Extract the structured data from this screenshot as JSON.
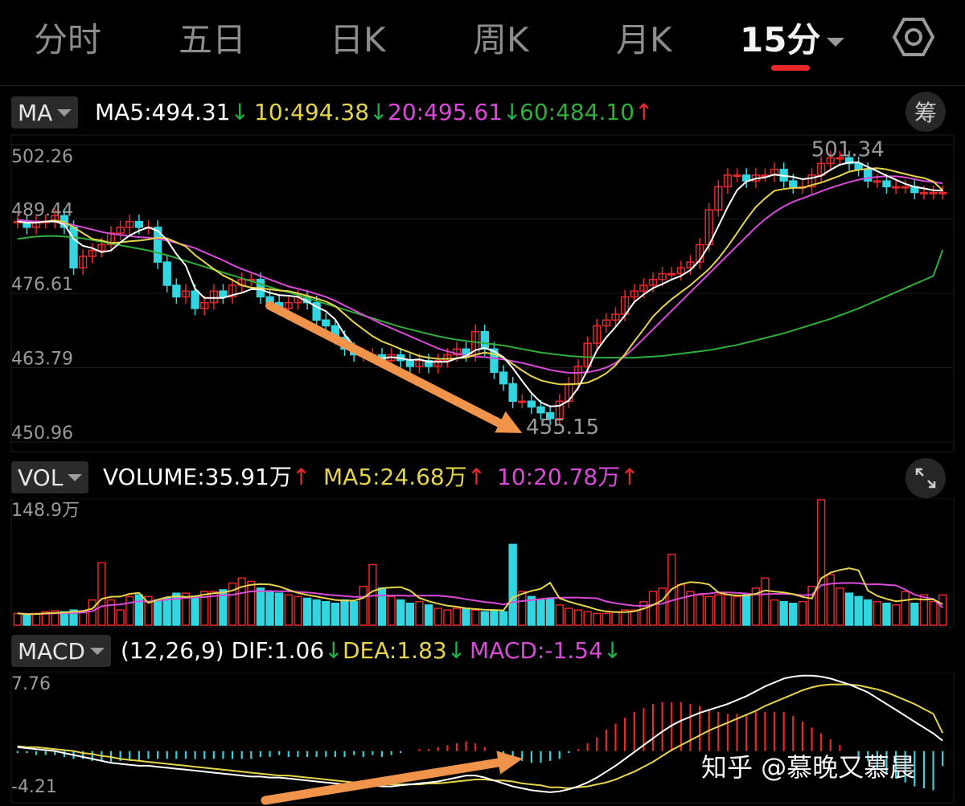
{
  "tabs": [
    {
      "label": "分时"
    },
    {
      "label": "五日"
    },
    {
      "label": "日K"
    },
    {
      "label": "周K"
    },
    {
      "label": "月K"
    },
    {
      "label": "15分"
    }
  ],
  "active_tab": "15分",
  "ma_legend": {
    "selector": "MA",
    "items": [
      {
        "text": "MA5:494.31",
        "arrow": "↓",
        "color": "#ffffff",
        "arrow_color": "#1fb34a"
      },
      {
        "text": "10:494.38",
        "arrow": "↓",
        "color": "#e6d44a",
        "arrow_color": "#1fb34a"
      },
      {
        "text": "20:495.61",
        "arrow": "↓",
        "color": "#d94ad8",
        "arrow_color": "#1fb34a"
      },
      {
        "text": "60:484.10",
        "arrow": "↑",
        "color": "#2fae3c",
        "arrow_color": "#e8282b"
      }
    ],
    "chip_button": "筹"
  },
  "vol_legend": {
    "selector": "VOL",
    "items": [
      {
        "text": "VOLUME:35.91万",
        "arrow": "↑",
        "color": "#ffffff",
        "arrow_color": "#e8282b"
      },
      {
        "text": "MA5:24.68万",
        "arrow": "↑",
        "color": "#e6d44a",
        "arrow_color": "#e8282b"
      },
      {
        "text": "10:20.78万",
        "arrow": "↑",
        "color": "#d94ad8",
        "arrow_color": "#e8282b"
      }
    ],
    "expand_icon": "expand-icon"
  },
  "macd_legend": {
    "selector": "MACD",
    "items": [
      {
        "text": "(12,26,9) DIF:1.06",
        "arrow": "↓",
        "color": "#ffffff",
        "arrow_color": "#1fb34a"
      },
      {
        "text": "DEA:1.83",
        "arrow": "↓",
        "color": "#e6d44a",
        "arrow_color": "#1fb34a"
      },
      {
        "text": "MACD:-1.54",
        "arrow": "↓",
        "color": "#d94ad8",
        "arrow_color": "#1fb34a"
      }
    ]
  },
  "watermark": "知乎 @慕晚又慕晨",
  "colors": {
    "up": "#e8282b",
    "down": "#33d6e0",
    "ma5": "#ffffff",
    "ma10": "#e6d44a",
    "ma20": "#d94ad8",
    "ma60": "#2fae3c",
    "annotation": "#f0944c"
  },
  "chart_data": [
    {
      "type": "candlestick",
      "name": "price",
      "y_ticks": [
        "502.26",
        "489.44",
        "476.61",
        "463.79",
        "450.96"
      ],
      "ylim": [
        450.96,
        502.26
      ],
      "annotations": {
        "high": "501.34",
        "low": "455.15"
      },
      "close": [
        489,
        488,
        489,
        489,
        490,
        488,
        481,
        483,
        484,
        485,
        487,
        488,
        489,
        488,
        488,
        482,
        478,
        476,
        477,
        474,
        475,
        477,
        476,
        478,
        479,
        479,
        476,
        475,
        474,
        475,
        476,
        475,
        472,
        471,
        469,
        467,
        466,
        466,
        466,
        465,
        466,
        465,
        464,
        465,
        464,
        465,
        466,
        467,
        466,
        470,
        467,
        463,
        461,
        458,
        458,
        457,
        456,
        455,
        458,
        461,
        464,
        468,
        471,
        472,
        473,
        476,
        477,
        478,
        479,
        480,
        480,
        481,
        482,
        485,
        491,
        495,
        497,
        497,
        496,
        497,
        497,
        498,
        496,
        495,
        495,
        497,
        499,
        500,
        500,
        499,
        498,
        496,
        496,
        495,
        495,
        495,
        494,
        494,
        494,
        494
      ],
      "ma5": [
        489,
        488.8,
        488.8,
        489,
        489,
        488.5,
        486,
        484.8,
        484.4,
        483.7,
        484,
        485.4,
        486.6,
        487.4,
        488,
        487.4,
        485.8,
        483.4,
        481.4,
        477.4,
        475.8,
        475.8,
        475.8,
        476.3,
        476.7,
        477.3,
        477.3,
        476.7,
        476.3,
        476.2,
        476,
        475.2,
        474.3,
        473.5,
        472.1,
        469.5,
        467.6,
        466.5,
        465.9,
        465.4,
        465.6,
        465.4,
        465.1,
        465.2,
        464.8,
        464.8,
        464.8,
        465.4,
        465.8,
        466.8,
        467.2,
        466.6,
        465.6,
        463.7,
        461.5,
        459.4,
        457.8,
        457.1,
        457.2,
        458.1,
        460.3,
        463.4,
        466.8,
        469,
        470.8,
        472.8,
        475.1,
        476.4,
        477.5,
        478.2,
        479,
        479.6,
        480.6,
        482.3,
        484.9,
        488.2,
        491.5,
        494.4,
        495.9,
        496.4,
        496.6,
        497.1,
        496.9,
        496.7,
        496.3,
        496.5,
        496.9,
        497.9,
        498.8,
        499.2,
        499.2,
        498.4,
        497.7,
        496.9,
        496.2,
        495.5,
        495,
        494.7,
        494.4,
        494.31
      ],
      "ma10": [
        489,
        488.8,
        488.8,
        489,
        489.2,
        488.9,
        488,
        487,
        486,
        485.7,
        485.3,
        485.4,
        485.6,
        485.7,
        485.9,
        486.2,
        486.1,
        485.4,
        484.7,
        483.2,
        482,
        480.8,
        479.7,
        478.9,
        478,
        477.6,
        477.5,
        477.3,
        477.1,
        477,
        476.6,
        476.2,
        475.7,
        475.2,
        474.4,
        473,
        471.6,
        470.4,
        469.2,
        468.3,
        467.7,
        467,
        466.4,
        465.8,
        465.5,
        465.3,
        465.3,
        465.4,
        465.5,
        466,
        466.4,
        466.1,
        465.5,
        464.4,
        463.3,
        462.3,
        461.6,
        461.2,
        460.9,
        460.9,
        461,
        461.2,
        461.9,
        462.8,
        464.2,
        466.1,
        468.3,
        470.4,
        472.6,
        474.2,
        475.6,
        476.8,
        478,
        479.4,
        480.8,
        482.6,
        484.7,
        487,
        489.4,
        491.5,
        493,
        494.3,
        494.6,
        494.8,
        494.8,
        495.3,
        495.7,
        496.3,
        496.9,
        497.6,
        497.9,
        498.1,
        498.2,
        498,
        497.6,
        497.2,
        496.8,
        496.5,
        495.9,
        494.38
      ],
      "ma20": [
        489.3,
        489.1,
        489,
        489,
        489,
        488.8,
        488.4,
        488,
        487.6,
        487.2,
        486.9,
        486.7,
        486.5,
        486.3,
        486.2,
        486,
        485.7,
        485.3,
        484.9,
        484.4,
        483.7,
        483,
        482.3,
        481.5,
        480.8,
        480.2,
        479.6,
        479,
        478.4,
        477.8,
        477.4,
        477,
        476.5,
        476,
        475.3,
        474.5,
        473.7,
        472.9,
        472.1,
        471.3,
        470.6,
        469.9,
        469.2,
        468.5,
        467.8,
        467.1,
        466.6,
        466.2,
        465.9,
        465.7,
        465.6,
        465.4,
        465.2,
        464.9,
        464.6,
        464.2,
        463.8,
        463.4,
        463.1,
        462.9,
        462.9,
        463,
        463.3,
        463.8,
        464.6,
        465.8,
        467.2,
        468.8,
        470.4,
        472,
        473.6,
        475.2,
        476.8,
        478.4,
        480,
        481.6,
        483.2,
        484.8,
        486.4,
        488,
        489.4,
        490.6,
        491.6,
        492.4,
        493,
        493.6,
        494.2,
        494.8,
        495.3,
        495.8,
        496.2,
        496.5,
        496.7,
        496.8,
        496.8,
        496.6,
        496.3,
        496,
        495.8,
        495.61
      ],
      "ma60": [
        486,
        486.2,
        486.4,
        486.5,
        486.5,
        486.4,
        486.3,
        486.1,
        485.8,
        485.5,
        485.2,
        484.9,
        484.6,
        484.3,
        484,
        483.6,
        483.2,
        482.7,
        482.2,
        481.7,
        481.2,
        480.7,
        480.2,
        479.7,
        479.2,
        478.7,
        478.2,
        477.7,
        477.2,
        476.8,
        476.3,
        475.8,
        475.3,
        474.8,
        474.3,
        473.8,
        473.3,
        472.8,
        472.3,
        471.8,
        471.3,
        470.8,
        470.4,
        470,
        469.6,
        469.2,
        468.9,
        468.6,
        468.4,
        468.2,
        468,
        467.8,
        467.6,
        467.3,
        467,
        466.7,
        466.4,
        466.2,
        466,
        465.8,
        465.7,
        465.6,
        465.5,
        465.5,
        465.5,
        465.5,
        465.5,
        465.6,
        465.7,
        465.8,
        466,
        466.2,
        466.4,
        466.6,
        466.8,
        467.1,
        467.4,
        467.7,
        468.1,
        468.5,
        468.9,
        469.3,
        469.7,
        470.2,
        470.7,
        471.2,
        471.7,
        472.2,
        472.8,
        473.4,
        474,
        474.7,
        475.4,
        476.1,
        476.8,
        477.5,
        478.2,
        478.9,
        479.6,
        484.1
      ]
    },
    {
      "type": "bar",
      "name": "volume",
      "y_ticks": [
        "148.9万"
      ],
      "ylim": [
        0,
        148.9
      ],
      "unit": "万",
      "values": [
        14,
        12,
        14,
        16,
        17,
        16,
        18,
        17,
        30,
        74,
        30,
        18,
        34,
        36,
        34,
        30,
        32,
        38,
        38,
        34,
        40,
        40,
        42,
        50,
        56,
        52,
        44,
        40,
        38,
        36,
        34,
        32,
        30,
        28,
        26,
        30,
        28,
        46,
        72,
        44,
        34,
        30,
        26,
        28,
        24,
        20,
        18,
        20,
        20,
        18,
        16,
        18,
        16,
        96,
        40,
        34,
        30,
        32,
        24,
        20,
        18,
        16,
        14,
        14,
        16,
        18,
        18,
        28,
        40,
        44,
        84,
        48,
        40,
        36,
        34,
        36,
        36,
        34,
        36,
        44,
        56,
        30,
        28,
        26,
        28,
        46,
        150,
        60,
        44,
        38,
        34,
        30,
        28,
        26,
        24,
        40,
        26,
        36,
        28,
        35.91
      ],
      "ma5": [
        14,
        13,
        13.3,
        14,
        14.6,
        15,
        16,
        16.8,
        19.6,
        31.2,
        33.8,
        34,
        37.2,
        38.4,
        26.4,
        30.4,
        33.2,
        34.4,
        33.6,
        34.4,
        36.4,
        38,
        38.8,
        41.2,
        45.6,
        48,
        48.8,
        48.4,
        46,
        42,
        38.4,
        36,
        34,
        32,
        30,
        29.2,
        29.2,
        32.4,
        40.4,
        44,
        44.8,
        45.2,
        41.2,
        32.4,
        28.4,
        25.6,
        23.2,
        22,
        20,
        19.2,
        18.4,
        18,
        17.6,
        32.8,
        37.2,
        40.8,
        43.2,
        50.4,
        32,
        28,
        24.8,
        22,
        18.4,
        16.4,
        15.6,
        15.6,
        16.4,
        19.6,
        24,
        29.6,
        42.8,
        48.8,
        51.2,
        50.4,
        48.4,
        38.8,
        36.4,
        35.2,
        35.2,
        37.2,
        41.2,
        40,
        38.8,
        36.8,
        33.6,
        31.6,
        55.6,
        62.4,
        65.6,
        67.6,
        65.2,
        41.2,
        34.8,
        31.2,
        28.4,
        29.6,
        31.2,
        30.4,
        30.8,
        24.68
      ],
      "ma10": [
        14,
        13.5,
        13.4,
        13.6,
        14,
        14.2,
        14.6,
        15,
        16.7,
        22.4,
        24,
        24.6,
        26.6,
        28.4,
        28.1,
        29.4,
        30.4,
        31.3,
        32.5,
        33,
        33.4,
        34.6,
        35.6,
        36.2,
        38.2,
        40.2,
        40.4,
        40.6,
        40.4,
        40.2,
        39.6,
        38.8,
        37.8,
        36.4,
        35.4,
        34.6,
        33.6,
        33.6,
        35,
        35.2,
        35.2,
        35.2,
        34.8,
        35,
        35.2,
        35,
        34.2,
        32.8,
        30.8,
        29.2,
        27.6,
        26.4,
        24.6,
        27.4,
        28.6,
        29.8,
        31,
        32.2,
        32.6,
        32.8,
        32.8,
        32.4,
        32,
        28.2,
        26.2,
        24.4,
        23.2,
        22.8,
        24.4,
        25.6,
        29.2,
        32.2,
        34.8,
        37,
        37.6,
        39,
        38.8,
        38.4,
        37.6,
        36.4,
        36.8,
        37.2,
        37.2,
        36.8,
        35.6,
        36.2,
        47.4,
        49.2,
        50,
        50.2,
        49.8,
        48.4,
        48.8,
        48,
        47.2,
        42.4,
        36.4,
        33.2,
        31.2,
        20.78
      ]
    },
    {
      "type": "line+bar",
      "name": "macd",
      "y_ticks": [
        "7.76",
        "-4.21"
      ],
      "ylim": [
        -4.21,
        7.76
      ],
      "dif": [
        0.4,
        0.3,
        0.2,
        0.1,
        0,
        -0.2,
        -0.4,
        -0.6,
        -0.8,
        -1,
        -1.2,
        -1.3,
        -1.4,
        -1.5,
        -1.5,
        -1.6,
        -1.7,
        -1.8,
        -1.9,
        -2,
        -2.1,
        -2.2,
        -2.3,
        -2.4,
        -2.5,
        -2.6,
        -2.6,
        -2.7,
        -2.7,
        -2.8,
        -2.9,
        -3,
        -3.1,
        -3.2,
        -3.3,
        -3.4,
        -3.4,
        -3.5,
        -3.5,
        -3.6,
        -3.6,
        -3.5,
        -3.4,
        -3.3,
        -3.2,
        -3.1,
        -2.9,
        -2.7,
        -2.5,
        -2.5,
        -2.7,
        -3,
        -3.3,
        -3.6,
        -3.8,
        -4,
        -4.1,
        -4.2,
        -4.1,
        -3.9,
        -3.6,
        -3.2,
        -2.7,
        -2.1,
        -1.5,
        -0.8,
        -0.1,
        0.6,
        1.3,
        2,
        2.6,
        3.1,
        3.5,
        3.9,
        4.2,
        4.5,
        4.8,
        5.2,
        5.6,
        6.1,
        6.6,
        7,
        7.4,
        7.6,
        7.7,
        7.7,
        7.6,
        7.4,
        7.1,
        6.8,
        6.4,
        6,
        5.4,
        4.8,
        4.2,
        3.6,
        3,
        2.4,
        1.8,
        1.06
      ],
      "dea": [
        0.5,
        0.4,
        0.4,
        0.3,
        0.2,
        0.1,
        0,
        -0.2,
        -0.3,
        -0.5,
        -0.6,
        -0.8,
        -0.9,
        -1,
        -1.1,
        -1.2,
        -1.3,
        -1.4,
        -1.5,
        -1.6,
        -1.7,
        -1.8,
        -1.9,
        -2,
        -2.1,
        -2.2,
        -2.3,
        -2.4,
        -2.5,
        -2.5,
        -2.6,
        -2.7,
        -2.8,
        -2.9,
        -3,
        -3.1,
        -3.2,
        -3.2,
        -3.3,
        -3.3,
        -3.4,
        -3.4,
        -3.4,
        -3.4,
        -3.3,
        -3.3,
        -3.2,
        -3.1,
        -3,
        -2.9,
        -2.9,
        -3,
        -3,
        -3.1,
        -3.3,
        -3.4,
        -3.5,
        -3.7,
        -3.7,
        -3.8,
        -3.7,
        -3.6,
        -3.4,
        -3.2,
        -2.9,
        -2.5,
        -2.1,
        -1.6,
        -1.1,
        -0.5,
        0.1,
        0.6,
        1.1,
        1.6,
        2.1,
        2.5,
        2.9,
        3.3,
        3.7,
        4.1,
        4.6,
        5,
        5.4,
        5.8,
        6.2,
        6.5,
        6.7,
        6.8,
        6.8,
        6.8,
        6.7,
        6.5,
        6.3,
        6,
        5.6,
        5.2,
        4.8,
        4.3,
        3.8,
        1.83
      ],
      "macd": [
        -0.2,
        -0.2,
        -0.4,
        -0.4,
        -0.4,
        -0.6,
        -0.8,
        -0.8,
        -1,
        -1,
        -1.2,
        -1,
        -1,
        -1,
        -0.8,
        -0.8,
        -0.8,
        -0.8,
        -0.8,
        -0.8,
        -0.8,
        -0.8,
        -0.8,
        -0.8,
        -0.8,
        -0.8,
        -0.6,
        -0.6,
        -0.4,
        -0.6,
        -0.6,
        -0.6,
        -0.6,
        -0.6,
        -0.6,
        -0.6,
        -0.4,
        -0.6,
        -0.4,
        -0.6,
        -0.4,
        -0.2,
        0,
        0.2,
        0.2,
        0.4,
        0.6,
        0.8,
        1,
        0.8,
        0.4,
        0,
        -0.6,
        -1,
        -1,
        -1.2,
        -1.2,
        -1,
        -0.8,
        -0.2,
        0.2,
        0.8,
        1.4,
        2.2,
        2.8,
        3.4,
        4,
        4.4,
        4.8,
        5,
        5,
        5,
        4.8,
        4.6,
        4.2,
        4,
        3.8,
        3.8,
        3.8,
        4,
        4,
        4,
        4,
        3.6,
        3,
        2.4,
        1.8,
        1.2,
        0.6,
        0,
        -0.6,
        -1,
        -1.8,
        -2.4,
        -2.8,
        -3.2,
        -3.6,
        -3.8,
        -4,
        -1.54
      ]
    }
  ]
}
